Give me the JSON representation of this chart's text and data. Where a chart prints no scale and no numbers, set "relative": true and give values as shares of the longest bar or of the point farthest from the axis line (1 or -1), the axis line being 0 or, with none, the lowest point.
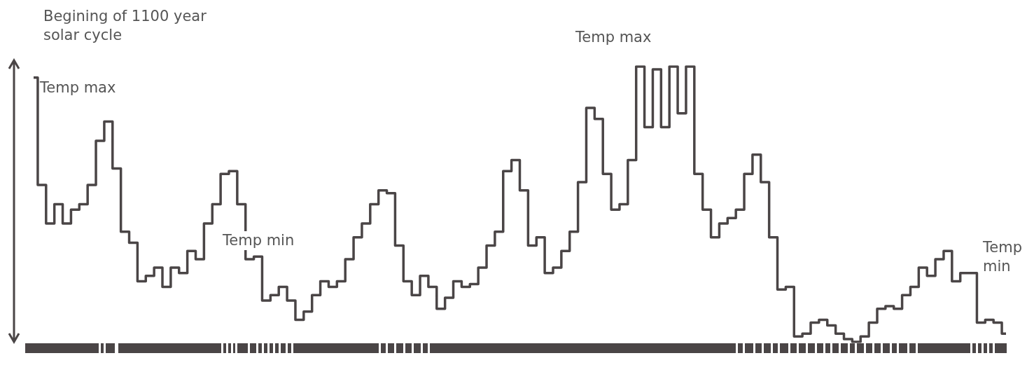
{
  "chart_data": {
    "type": "step",
    "relative": true,
    "categories": [
      null,
      null,
      null,
      null,
      null,
      null,
      null,
      null,
      null,
      null,
      null,
      null,
      null,
      null,
      null,
      null,
      null,
      null,
      null,
      null,
      null,
      null,
      null,
      null,
      null,
      null,
      null,
      null,
      null,
      null,
      null,
      null,
      null,
      null,
      null,
      null,
      null,
      null,
      null,
      null,
      null,
      null,
      null,
      null,
      null,
      null,
      null,
      null,
      null,
      null,
      null,
      null,
      null,
      null,
      null,
      null,
      null,
      null,
      null,
      null,
      null,
      null,
      null,
      null,
      null,
      null,
      null,
      null,
      null,
      null,
      null,
      null,
      null,
      null,
      null,
      null,
      null,
      null,
      null,
      null,
      null,
      null,
      null,
      null,
      null,
      null,
      null,
      null,
      null,
      null,
      null,
      null,
      null,
      null,
      null,
      null,
      null,
      null,
      null,
      null,
      null,
      null,
      null,
      null,
      null,
      null,
      null,
      null,
      null,
      null,
      null,
      null,
      null,
      null,
      null,
      null,
      null,
      null
    ],
    "series": [
      {
        "color": "#4a4546",
        "values": [
          0.96,
          0.57,
          0.43,
          0.5,
          0.43,
          0.48,
          0.5,
          0.57,
          0.73,
          0.8,
          0.63,
          0.4,
          0.36,
          0.22,
          0.24,
          0.27,
          0.2,
          0.27,
          0.25,
          0.33,
          0.3,
          0.43,
          0.5,
          0.61,
          0.62,
          0.5,
          0.3,
          0.31,
          0.15,
          0.17,
          0.2,
          0.15,
          0.08,
          0.11,
          0.17,
          0.22,
          0.2,
          0.22,
          0.3,
          0.38,
          0.43,
          0.5,
          0.55,
          0.54,
          0.35,
          0.22,
          0.17,
          0.24,
          0.2,
          0.12,
          0.16,
          0.22,
          0.2,
          0.21,
          0.27,
          0.35,
          0.4,
          0.62,
          0.66,
          0.55,
          0.35,
          0.38,
          0.25,
          0.27,
          0.33,
          0.4,
          0.58,
          0.85,
          0.81,
          0.61,
          0.48,
          0.5,
          0.66,
          1,
          0.78,
          0.99,
          0.78,
          1,
          0.83,
          1,
          0.61,
          0.48,
          0.38,
          0.43,
          0.45,
          0.48,
          0.61,
          0.68,
          0.58,
          0.38,
          0.19,
          0.2,
          0.02,
          0.03,
          0.07,
          0.08,
          0.06,
          0.03,
          0.01,
          0,
          0.02,
          0.07,
          0.12,
          0.13,
          0.12,
          0.17,
          0.2,
          0.27,
          0.24,
          0.3,
          0.33,
          0.22,
          0.25,
          0.25,
          0.07,
          0.08,
          0.07,
          0.03
        ]
      }
    ],
    "annotations": [
      "Begining of 1100 year solar cycle",
      "Temp max",
      "Temp min",
      "Temp max",
      "Temp min"
    ],
    "legend": false,
    "line_style": "solid",
    "marker": "none"
  }
}
